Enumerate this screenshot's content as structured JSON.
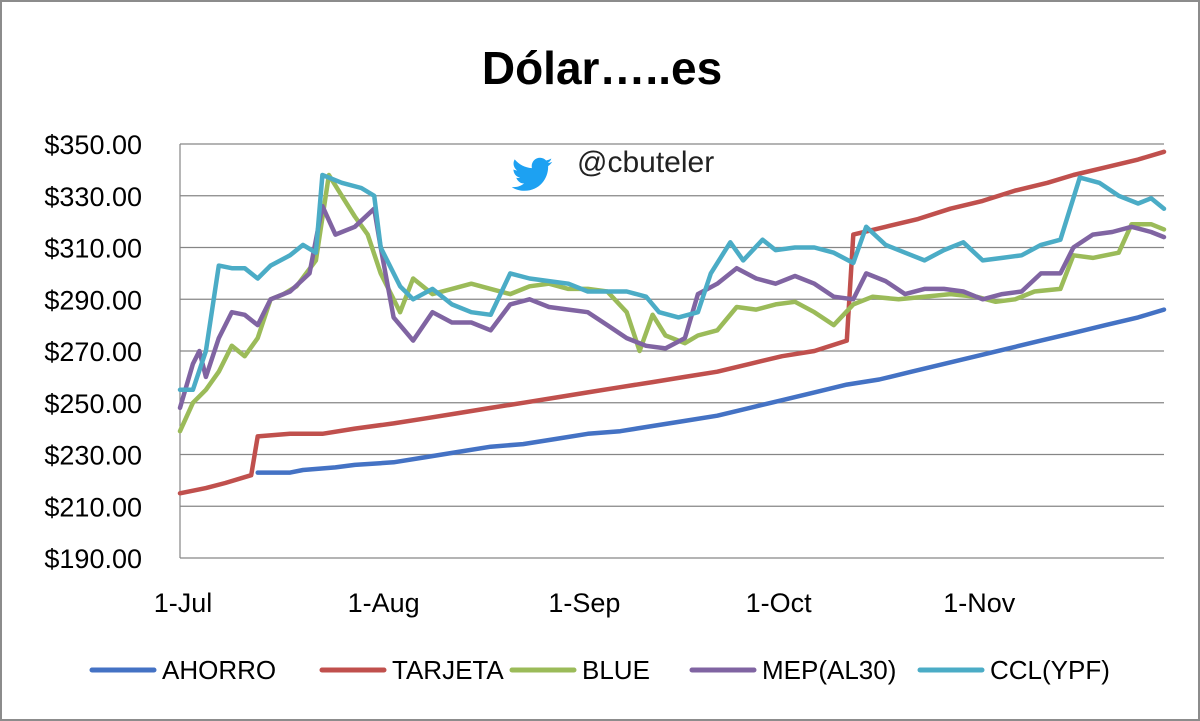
{
  "chart_data": {
    "type": "line",
    "title": "Dólar…..es",
    "handle": "@cbuteler",
    "xlabel": "",
    "ylabel": "",
    "ylim": [
      190,
      350
    ],
    "y_ticks": [
      "$350.00",
      "$330.00",
      "$310.00",
      "$290.00",
      "$270.00",
      "$250.00",
      "$230.00",
      "$210.00",
      "$190.00"
    ],
    "y_tick_values": [
      350,
      330,
      310,
      290,
      270,
      250,
      230,
      210,
      190
    ],
    "x_ticks": [
      "1-Jul",
      "1-Aug",
      "1-Sep",
      "1-Oct",
      "1-Nov"
    ],
    "x_tick_values": [
      "2020-07-01",
      "2020-08-01",
      "2020-09-01",
      "2020-10-01",
      "2020-11-01"
    ],
    "xlim": [
      "2020-07-01",
      "2020-11-30"
    ],
    "grid": true,
    "legend_position": "bottom",
    "series": [
      {
        "name": "AHORRO",
        "color": "#4472c4",
        "points": [
          [
            "2020-07-13",
            223
          ],
          [
            "2020-07-18",
            223
          ],
          [
            "2020-07-20",
            224
          ],
          [
            "2020-07-25",
            225
          ],
          [
            "2020-07-28",
            226
          ],
          [
            "2020-08-03",
            227
          ],
          [
            "2020-08-08",
            229
          ],
          [
            "2020-08-13",
            231
          ],
          [
            "2020-08-18",
            233
          ],
          [
            "2020-08-23",
            234
          ],
          [
            "2020-08-28",
            236
          ],
          [
            "2020-09-02",
            238
          ],
          [
            "2020-09-07",
            239
          ],
          [
            "2020-09-12",
            241
          ],
          [
            "2020-09-17",
            243
          ],
          [
            "2020-09-22",
            245
          ],
          [
            "2020-09-27",
            248
          ],
          [
            "2020-10-02",
            251
          ],
          [
            "2020-10-07",
            254
          ],
          [
            "2020-10-12",
            257
          ],
          [
            "2020-10-17",
            259
          ],
          [
            "2020-10-22",
            262
          ],
          [
            "2020-10-27",
            265
          ],
          [
            "2020-11-01",
            268
          ],
          [
            "2020-11-06",
            271
          ],
          [
            "2020-11-11",
            274
          ],
          [
            "2020-11-16",
            277
          ],
          [
            "2020-11-21",
            280
          ],
          [
            "2020-11-26",
            283
          ],
          [
            "2020-11-30",
            286
          ]
        ]
      },
      {
        "name": "TARJETA",
        "color": "#c0504d",
        "points": [
          [
            "2020-07-01",
            215
          ],
          [
            "2020-07-05",
            217
          ],
          [
            "2020-07-08",
            219
          ],
          [
            "2020-07-12",
            222
          ],
          [
            "2020-07-13",
            237
          ],
          [
            "2020-07-18",
            238
          ],
          [
            "2020-07-23",
            238
          ],
          [
            "2020-07-28",
            240
          ],
          [
            "2020-08-03",
            242
          ],
          [
            "2020-08-08",
            244
          ],
          [
            "2020-08-13",
            246
          ],
          [
            "2020-08-18",
            248
          ],
          [
            "2020-08-23",
            250
          ],
          [
            "2020-08-28",
            252
          ],
          [
            "2020-09-02",
            254
          ],
          [
            "2020-09-07",
            256
          ],
          [
            "2020-09-12",
            258
          ],
          [
            "2020-09-17",
            260
          ],
          [
            "2020-09-22",
            262
          ],
          [
            "2020-09-27",
            265
          ],
          [
            "2020-10-02",
            268
          ],
          [
            "2020-10-07",
            270
          ],
          [
            "2020-10-12",
            274
          ],
          [
            "2020-10-13",
            315
          ],
          [
            "2020-10-18",
            318
          ],
          [
            "2020-10-23",
            321
          ],
          [
            "2020-10-28",
            325
          ],
          [
            "2020-11-02",
            328
          ],
          [
            "2020-11-07",
            332
          ],
          [
            "2020-11-12",
            335
          ],
          [
            "2020-11-16",
            338
          ],
          [
            "2020-11-21",
            341
          ],
          [
            "2020-11-26",
            344
          ],
          [
            "2020-11-30",
            347
          ]
        ]
      },
      {
        "name": "BLUE",
        "color": "#9bbb59",
        "points": [
          [
            "2020-07-01",
            239
          ],
          [
            "2020-07-03",
            250
          ],
          [
            "2020-07-05",
            255
          ],
          [
            "2020-07-07",
            262
          ],
          [
            "2020-07-09",
            272
          ],
          [
            "2020-07-11",
            268
          ],
          [
            "2020-07-13",
            275
          ],
          [
            "2020-07-15",
            290
          ],
          [
            "2020-07-17",
            292
          ],
          [
            "2020-07-19",
            295
          ],
          [
            "2020-07-22",
            305
          ],
          [
            "2020-07-24",
            338
          ],
          [
            "2020-07-26",
            330
          ],
          [
            "2020-07-28",
            322
          ],
          [
            "2020-07-30",
            315
          ],
          [
            "2020-08-01",
            300
          ],
          [
            "2020-08-04",
            285
          ],
          [
            "2020-08-06",
            298
          ],
          [
            "2020-08-09",
            292
          ],
          [
            "2020-08-12",
            294
          ],
          [
            "2020-08-15",
            296
          ],
          [
            "2020-08-18",
            294
          ],
          [
            "2020-08-21",
            292
          ],
          [
            "2020-08-24",
            295
          ],
          [
            "2020-08-27",
            296
          ],
          [
            "2020-08-30",
            294
          ],
          [
            "2020-09-02",
            294
          ],
          [
            "2020-09-05",
            293
          ],
          [
            "2020-09-08",
            285
          ],
          [
            "2020-09-10",
            270
          ],
          [
            "2020-09-12",
            284
          ],
          [
            "2020-09-14",
            276
          ],
          [
            "2020-09-17",
            273
          ],
          [
            "2020-09-19",
            276
          ],
          [
            "2020-09-22",
            278
          ],
          [
            "2020-09-25",
            287
          ],
          [
            "2020-09-28",
            286
          ],
          [
            "2020-10-01",
            288
          ],
          [
            "2020-10-04",
            289
          ],
          [
            "2020-10-07",
            285
          ],
          [
            "2020-10-10",
            280
          ],
          [
            "2020-10-13",
            288
          ],
          [
            "2020-10-16",
            291
          ],
          [
            "2020-10-20",
            290
          ],
          [
            "2020-10-24",
            291
          ],
          [
            "2020-10-28",
            292
          ],
          [
            "2020-11-01",
            291
          ],
          [
            "2020-11-04",
            289
          ],
          [
            "2020-11-07",
            290
          ],
          [
            "2020-11-10",
            293
          ],
          [
            "2020-11-14",
            294
          ],
          [
            "2020-11-16",
            307
          ],
          [
            "2020-11-19",
            306
          ],
          [
            "2020-11-23",
            308
          ],
          [
            "2020-11-25",
            319
          ],
          [
            "2020-11-28",
            319
          ],
          [
            "2020-11-30",
            317
          ]
        ]
      },
      {
        "name": "MEP(AL30)",
        "color": "#8064a2",
        "points": [
          [
            "2020-07-01",
            248
          ],
          [
            "2020-07-03",
            265
          ],
          [
            "2020-07-04",
            270
          ],
          [
            "2020-07-05",
            260
          ],
          [
            "2020-07-07",
            275
          ],
          [
            "2020-07-09",
            285
          ],
          [
            "2020-07-11",
            284
          ],
          [
            "2020-07-13",
            280
          ],
          [
            "2020-07-15",
            290
          ],
          [
            "2020-07-18",
            293
          ],
          [
            "2020-07-21",
            300
          ],
          [
            "2020-07-23",
            326
          ],
          [
            "2020-07-25",
            315
          ],
          [
            "2020-07-28",
            318
          ],
          [
            "2020-07-31",
            325
          ],
          [
            "2020-08-01",
            310
          ],
          [
            "2020-08-03",
            283
          ],
          [
            "2020-08-06",
            274
          ],
          [
            "2020-08-09",
            285
          ],
          [
            "2020-08-12",
            281
          ],
          [
            "2020-08-15",
            281
          ],
          [
            "2020-08-18",
            278
          ],
          [
            "2020-08-21",
            288
          ],
          [
            "2020-08-24",
            290
          ],
          [
            "2020-08-27",
            287
          ],
          [
            "2020-08-30",
            286
          ],
          [
            "2020-09-02",
            285
          ],
          [
            "2020-09-05",
            280
          ],
          [
            "2020-09-08",
            275
          ],
          [
            "2020-09-11",
            272
          ],
          [
            "2020-09-14",
            271
          ],
          [
            "2020-09-17",
            275
          ],
          [
            "2020-09-19",
            292
          ],
          [
            "2020-09-22",
            296
          ],
          [
            "2020-09-25",
            302
          ],
          [
            "2020-09-28",
            298
          ],
          [
            "2020-10-01",
            296
          ],
          [
            "2020-10-04",
            299
          ],
          [
            "2020-10-07",
            296
          ],
          [
            "2020-10-10",
            291
          ],
          [
            "2020-10-13",
            290
          ],
          [
            "2020-10-15",
            300
          ],
          [
            "2020-10-18",
            297
          ],
          [
            "2020-10-21",
            292
          ],
          [
            "2020-10-24",
            294
          ],
          [
            "2020-10-27",
            294
          ],
          [
            "2020-10-30",
            293
          ],
          [
            "2020-11-02",
            290
          ],
          [
            "2020-11-05",
            292
          ],
          [
            "2020-11-08",
            293
          ],
          [
            "2020-11-11",
            300
          ],
          [
            "2020-11-14",
            300
          ],
          [
            "2020-11-16",
            310
          ],
          [
            "2020-11-19",
            315
          ],
          [
            "2020-11-22",
            316
          ],
          [
            "2020-11-25",
            318
          ],
          [
            "2020-11-28",
            316
          ],
          [
            "2020-11-30",
            314
          ]
        ]
      },
      {
        "name": "CCL(YPF)",
        "color": "#4bacc6",
        "points": [
          [
            "2020-07-01",
            255
          ],
          [
            "2020-07-03",
            255
          ],
          [
            "2020-07-05",
            270
          ],
          [
            "2020-07-07",
            303
          ],
          [
            "2020-07-09",
            302
          ],
          [
            "2020-07-11",
            302
          ],
          [
            "2020-07-13",
            298
          ],
          [
            "2020-07-15",
            303
          ],
          [
            "2020-07-18",
            307
          ],
          [
            "2020-07-20",
            311
          ],
          [
            "2020-07-22",
            308
          ],
          [
            "2020-07-23",
            338
          ],
          [
            "2020-07-26",
            335
          ],
          [
            "2020-07-29",
            333
          ],
          [
            "2020-07-31",
            330
          ],
          [
            "2020-08-01",
            310
          ],
          [
            "2020-08-04",
            295
          ],
          [
            "2020-08-06",
            290
          ],
          [
            "2020-08-09",
            294
          ],
          [
            "2020-08-12",
            288
          ],
          [
            "2020-08-15",
            285
          ],
          [
            "2020-08-18",
            284
          ],
          [
            "2020-08-21",
            300
          ],
          [
            "2020-08-24",
            298
          ],
          [
            "2020-08-27",
            297
          ],
          [
            "2020-08-30",
            296
          ],
          [
            "2020-09-02",
            293
          ],
          [
            "2020-09-05",
            293
          ],
          [
            "2020-09-08",
            293
          ],
          [
            "2020-09-11",
            291
          ],
          [
            "2020-09-13",
            285
          ],
          [
            "2020-09-16",
            283
          ],
          [
            "2020-09-19",
            285
          ],
          [
            "2020-09-21",
            300
          ],
          [
            "2020-09-24",
            312
          ],
          [
            "2020-09-26",
            305
          ],
          [
            "2020-09-29",
            313
          ],
          [
            "2020-10-01",
            309
          ],
          [
            "2020-10-04",
            310
          ],
          [
            "2020-10-07",
            310
          ],
          [
            "2020-10-10",
            308
          ],
          [
            "2020-10-13",
            304
          ],
          [
            "2020-10-15",
            318
          ],
          [
            "2020-10-18",
            311
          ],
          [
            "2020-10-21",
            308
          ],
          [
            "2020-10-24",
            305
          ],
          [
            "2020-10-27",
            309
          ],
          [
            "2020-10-30",
            312
          ],
          [
            "2020-11-02",
            305
          ],
          [
            "2020-11-05",
            306
          ],
          [
            "2020-11-08",
            307
          ],
          [
            "2020-11-11",
            311
          ],
          [
            "2020-11-14",
            313
          ],
          [
            "2020-11-17",
            337
          ],
          [
            "2020-11-20",
            335
          ],
          [
            "2020-11-23",
            330
          ],
          [
            "2020-11-26",
            327
          ],
          [
            "2020-11-28",
            329
          ],
          [
            "2020-11-30",
            325
          ]
        ]
      }
    ]
  }
}
